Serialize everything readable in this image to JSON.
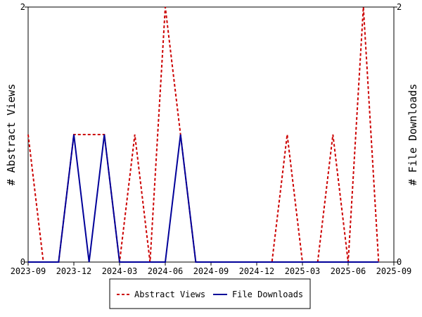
{
  "chart_data": {
    "type": "line",
    "x": [
      "2023-09",
      "2023-10",
      "2023-11",
      "2023-12",
      "2024-01",
      "2024-02",
      "2024-03",
      "2024-04",
      "2024-05",
      "2024-06",
      "2024-07",
      "2024-08",
      "2024-09",
      "2024-10",
      "2024-11",
      "2024-12",
      "2025-01",
      "2025-02",
      "2025-03",
      "2025-04",
      "2025-05",
      "2025-06",
      "2025-07",
      "2025-08"
    ],
    "series": [
      {
        "name": "Abstract Views",
        "color": "#cc0000",
        "dash": "dashed",
        "axis": "left",
        "values": [
          1,
          0,
          0,
          1,
          1,
          1,
          0,
          1,
          0,
          2,
          1,
          0,
          0,
          0,
          0,
          0,
          0,
          1,
          0,
          0,
          1,
          0,
          2,
          0
        ]
      },
      {
        "name": "File Downloads",
        "color": "#000099",
        "dash": "solid",
        "axis": "right",
        "values": [
          0,
          0,
          0,
          1,
          0,
          1,
          0,
          0,
          0,
          0,
          1,
          0,
          0,
          0,
          0,
          0,
          0,
          0,
          0,
          0,
          0,
          0,
          0,
          0
        ]
      }
    ],
    "ylabel": "# Abstract Views",
    "y2label": "# File Downloads",
    "ylim": [
      0,
      2
    ],
    "y2lim": [
      0,
      2
    ],
    "yticks": [
      "0",
      "2"
    ],
    "y2ticks": [
      "0",
      "2"
    ],
    "xticks": [
      "2023-09",
      "2023-12",
      "2024-03",
      "2024-06",
      "2024-09",
      "2024-12",
      "2025-03",
      "2025-06",
      "2025-09"
    ],
    "xlim": [
      "2023-09",
      "2025-09"
    ],
    "grid": false,
    "legend": "bottom-center"
  }
}
